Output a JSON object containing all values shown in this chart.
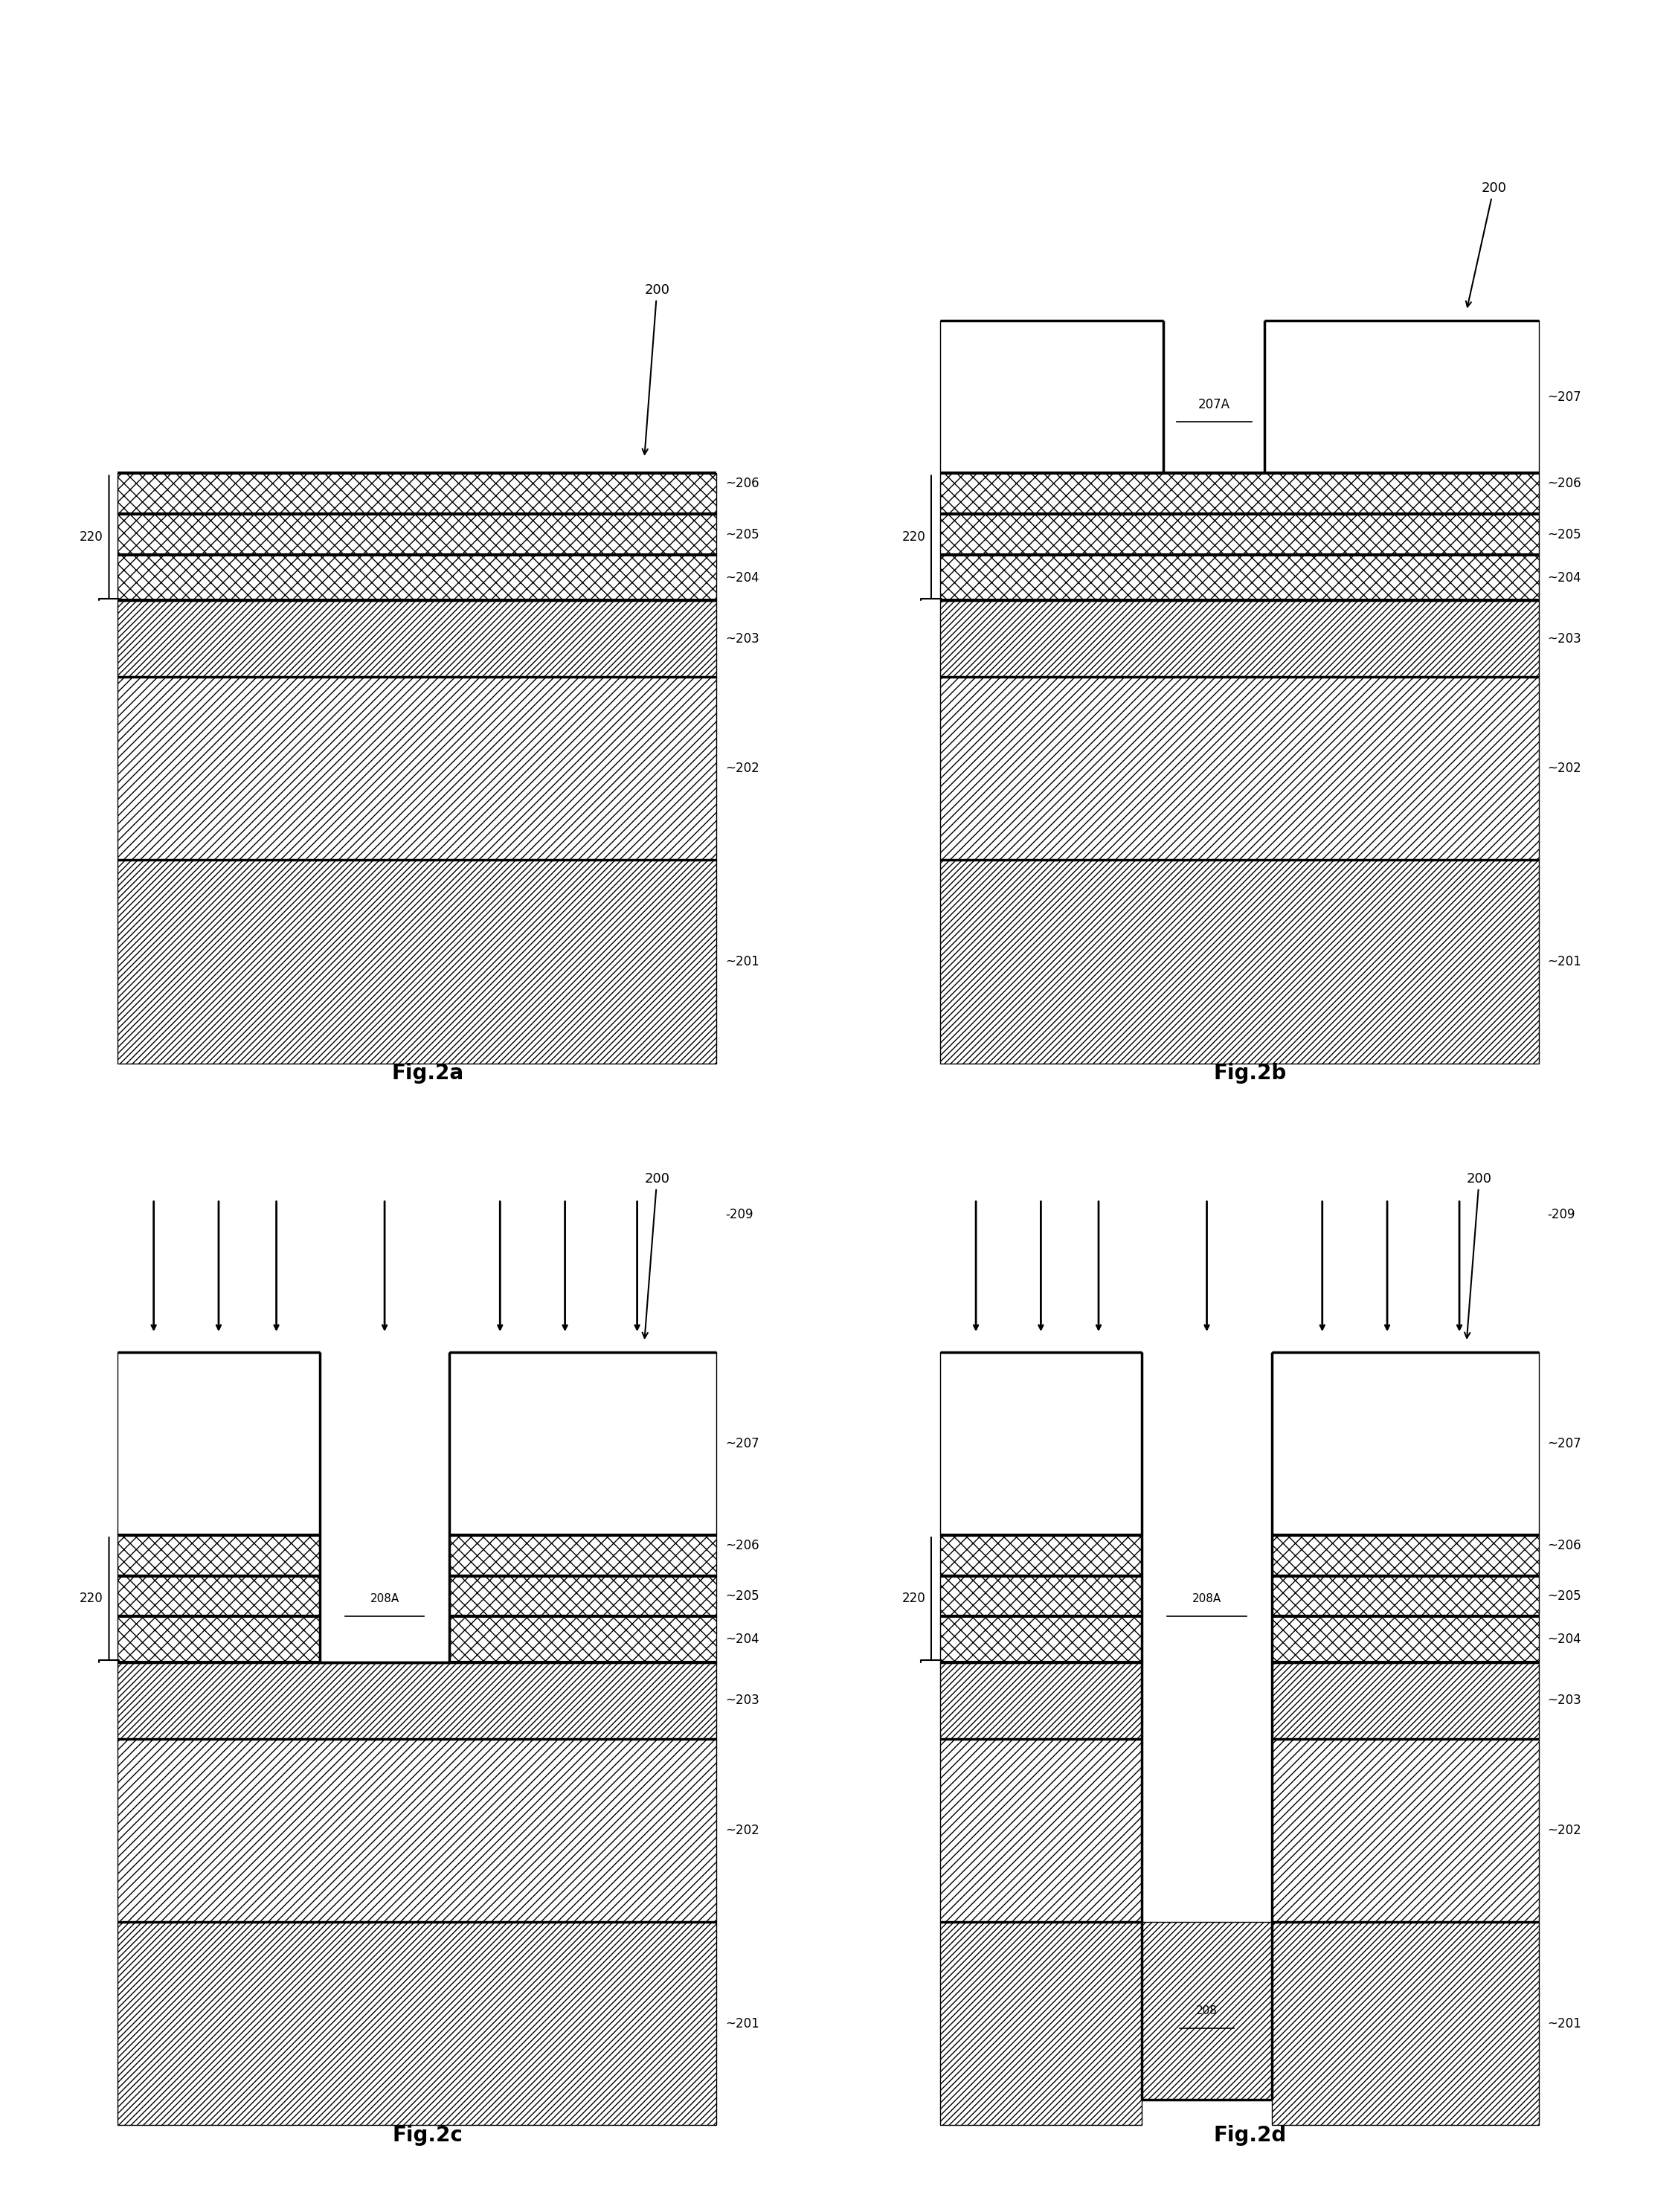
{
  "bg_color": "#ffffff",
  "line_color": "#000000",
  "fig_labels": [
    "Fig.2a",
    "Fig.2b",
    "Fig.2c",
    "Fig.2d"
  ],
  "layer_labels": {
    "201": "~201",
    "202": "~202",
    "203": "~203",
    "204": "~204",
    "205": "~205",
    "206": "~206",
    "207": "~207",
    "207A": "207A",
    "208": "208",
    "208A": "208A",
    "209": "-209",
    "220": "220",
    "200": "200"
  },
  "font_size_label": 12,
  "font_size_fig": 20,
  "lw_thick": 2.5,
  "lw_edge": 1.0
}
